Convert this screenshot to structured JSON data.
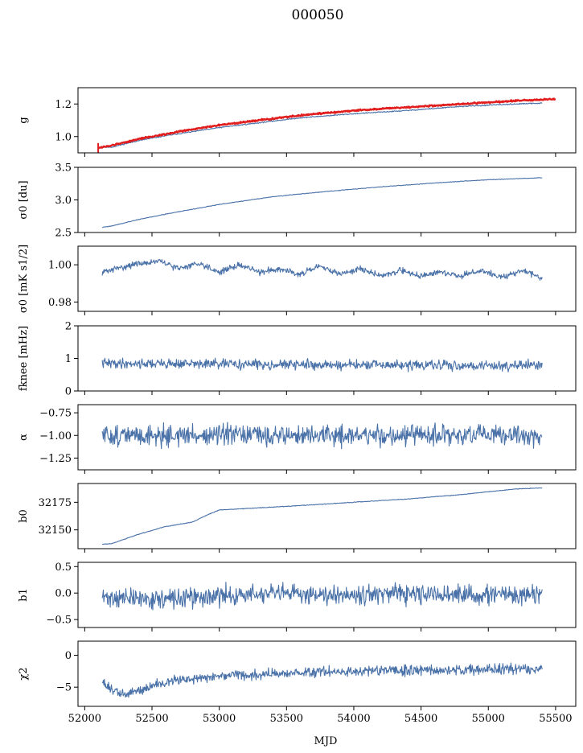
{
  "figure": {
    "title": "000050",
    "xlabel": "MJD",
    "xlim": [
      51950,
      55650
    ],
    "xticks": [
      52000,
      52500,
      53000,
      53500,
      54000,
      54500,
      55000,
      55500
    ],
    "colors": {
      "series": "#4a72a8",
      "fit": "#e11d1d"
    }
  },
  "chart_data": [
    {
      "type": "line",
      "ylabel": "g",
      "ylim": [
        0.9,
        1.3
      ],
      "yticks": [
        1.0,
        1.2
      ],
      "ytick_labels": [
        "1.0",
        "1.2"
      ],
      "series": [
        {
          "x": [
            52130,
            52200,
            52400,
            52600,
            52800,
            53000,
            53300,
            53600,
            54000,
            54400,
            54800,
            55200,
            55400
          ],
          "values": [
            0.935,
            0.935,
            0.975,
            1.005,
            1.03,
            1.055,
            1.085,
            1.115,
            1.14,
            1.16,
            1.185,
            1.2,
            1.205
          ],
          "color": "#4a72a8",
          "noise": 0.003,
          "seed": 11
        },
        {
          "x": [
            52100,
            52130,
            52200,
            52400,
            52600,
            52800,
            53000,
            53300,
            53600,
            54000,
            54400,
            54800,
            55200,
            55500
          ],
          "values": [
            0.93,
            0.935,
            0.945,
            0.985,
            1.015,
            1.045,
            1.07,
            1.1,
            1.13,
            1.16,
            1.18,
            1.2,
            1.22,
            1.23
          ],
          "color": "#e11d1d",
          "noise": 0.004,
          "seed": 12,
          "thick": true
        }
      ]
    },
    {
      "type": "line",
      "ylabel": "σ0 [du]",
      "ylim": [
        2.5,
        3.5
      ],
      "yticks": [
        2.5,
        3.0,
        3.5
      ],
      "ytick_labels": [
        "2.5",
        "3.0",
        "3.5"
      ],
      "series": [
        {
          "x": [
            52130,
            52200,
            52400,
            52700,
            53000,
            53400,
            53800,
            54200,
            54600,
            55000,
            55400
          ],
          "values": [
            2.58,
            2.6,
            2.7,
            2.82,
            2.93,
            3.05,
            3.13,
            3.2,
            3.26,
            3.31,
            3.34
          ],
          "color": "#4a72a8",
          "noise": 0.004,
          "seed": 21
        }
      ]
    },
    {
      "type": "line",
      "ylabel": "σ0 [mK s1/2]",
      "ylim": [
        0.975,
        1.01
      ],
      "yticks": [
        0.98,
        1.0
      ],
      "ytick_labels": [
        "0.98",
        "1.00"
      ],
      "series": [
        {
          "x": [
            52130,
            52350,
            52550,
            52700,
            52850,
            53000,
            53150,
            53300,
            53450,
            53600,
            53750,
            53900,
            54050,
            54200,
            54350,
            54500,
            54650,
            54800,
            54950,
            55100,
            55250,
            55400
          ],
          "values": [
            0.996,
            1.0,
            1.002,
            0.998,
            1.001,
            0.996,
            1.0,
            0.996,
            0.998,
            0.995,
            0.999,
            0.995,
            0.998,
            0.994,
            0.997,
            0.994,
            0.996,
            0.994,
            0.997,
            0.993,
            0.997,
            0.993
          ],
          "color": "#4a72a8",
          "noise": 0.0014,
          "seed": 31
        }
      ]
    },
    {
      "type": "line",
      "ylabel": "fknee [mHz]",
      "ylim": [
        0,
        2
      ],
      "yticks": [
        0,
        1,
        2
      ],
      "ytick_labels": [
        "0",
        "1",
        "2"
      ],
      "series": [
        {
          "x": [
            52130,
            52600,
            53200,
            53800,
            54400,
            55000,
            55400
          ],
          "values": [
            0.85,
            0.84,
            0.82,
            0.8,
            0.79,
            0.78,
            0.78
          ],
          "color": "#4a72a8",
          "noise": 0.13,
          "seed": 41
        }
      ]
    },
    {
      "type": "line",
      "ylabel": "α",
      "ylim": [
        -1.38,
        -0.66
      ],
      "yticks": [
        -1.25,
        -1.0,
        -0.75
      ],
      "ytick_labels": [
        "−1.25",
        "−1.00",
        "−0.75"
      ],
      "series": [
        {
          "x": [
            52130,
            55400
          ],
          "values": [
            -1.0,
            -1.0
          ],
          "color": "#4a72a8",
          "noise": 0.1,
          "seed": 51
        }
      ]
    },
    {
      "type": "line",
      "ylabel": "b0",
      "ylim": [
        32133,
        32192
      ],
      "yticks": [
        32150,
        32175
      ],
      "ytick_labels": [
        "32150",
        "32175"
      ],
      "series": [
        {
          "x": [
            52130,
            52200,
            52400,
            52600,
            52800,
            52900,
            53000,
            53300,
            53600,
            54000,
            54400,
            54800,
            55200,
            55400
          ],
          "values": [
            32137,
            32137.5,
            32146,
            32153,
            32157,
            32163,
            32168,
            32170,
            32172,
            32175,
            32178,
            32182,
            32187,
            32188
          ],
          "color": "#4a72a8",
          "noise": 0.25,
          "seed": 61
        }
      ]
    },
    {
      "type": "line",
      "ylabel": "b1",
      "ylim": [
        -0.65,
        0.58
      ],
      "yticks": [
        -0.5,
        0.0,
        0.5
      ],
      "ytick_labels": [
        "−0.5",
        "0.0",
        "0.5"
      ],
      "series": [
        {
          "x": [
            52130,
            52600,
            53200,
            53800,
            54400,
            55000,
            55400
          ],
          "values": [
            -0.08,
            -0.12,
            -0.03,
            -0.01,
            -0.03,
            -0.04,
            -0.03
          ],
          "color": "#4a72a8",
          "noise": 0.16,
          "seed": 71
        }
      ]
    },
    {
      "type": "line",
      "ylabel": "χ2",
      "ylim": [
        -8,
        2.2
      ],
      "yticks": [
        -5,
        0
      ],
      "ytick_labels": [
        "−5",
        "0"
      ],
      "series": [
        {
          "x": [
            52130,
            52200,
            52300,
            52500,
            52700,
            53000,
            53300,
            53600,
            54000,
            54400,
            54800,
            55200,
            55400
          ],
          "values": [
            -4,
            -5.5,
            -6.2,
            -4.8,
            -3.8,
            -3.3,
            -3.0,
            -2.7,
            -2.5,
            -2.4,
            -2.3,
            -2.2,
            -2.1
          ],
          "color": "#4a72a8",
          "noise": 0.7,
          "seed": 81
        }
      ]
    }
  ]
}
